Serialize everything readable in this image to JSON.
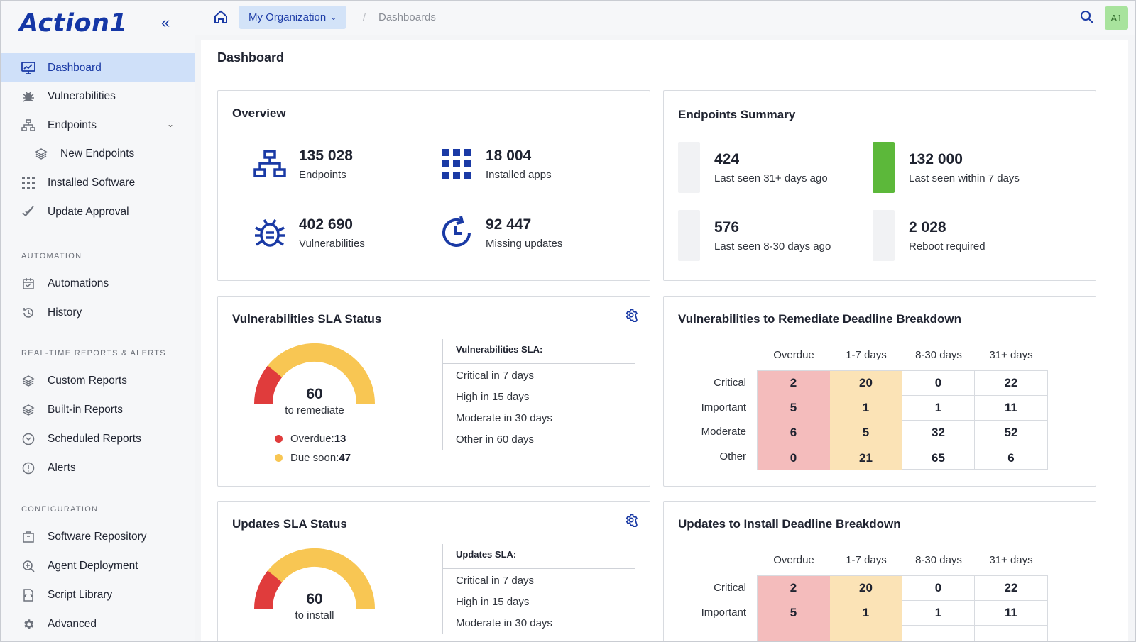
{
  "app": {
    "logo": "Action1"
  },
  "topbar": {
    "organization": "My Organization",
    "breadcrumb": "Dashboards",
    "avatar": "A1"
  },
  "sidebar": {
    "items": [
      {
        "label": "Dashboard",
        "icon": "monitor-icon",
        "active": true
      },
      {
        "label": "Vulnerabilities",
        "icon": "bug-icon"
      },
      {
        "label": "Endpoints",
        "icon": "network-icon"
      },
      {
        "label": "New Endpoints",
        "icon": "layers-icon"
      },
      {
        "label": "Installed Software",
        "icon": "grid-icon"
      },
      {
        "label": "Update Approval",
        "icon": "double-check-icon"
      },
      {
        "label": "Automations",
        "icon": "calendar-check-icon"
      },
      {
        "label": "History",
        "icon": "history-icon"
      },
      {
        "label": "Custom Reports",
        "icon": "layers-icon"
      },
      {
        "label": "Built-in Reports",
        "icon": "layers-icon"
      },
      {
        "label": "Scheduled Reports",
        "icon": "clock-circle-icon"
      },
      {
        "label": "Alerts",
        "icon": "alert-circle-icon"
      },
      {
        "label": "Software Repository",
        "icon": "package-icon"
      },
      {
        "label": "Agent Deployment",
        "icon": "zoom-plus-icon"
      },
      {
        "label": "Script Library",
        "icon": "script-icon"
      },
      {
        "label": "Advanced",
        "icon": "gear-icon"
      }
    ],
    "sections": {
      "automation": "AUTOMATION",
      "reports": "REAL-TIME REPORTS & ALERTS",
      "configuration": "CONFIGURATION"
    }
  },
  "page": {
    "title": "Dashboard"
  },
  "overview": {
    "title": "Overview",
    "items": [
      {
        "value": "135 028",
        "label": "Endpoints",
        "icon": "network-icon"
      },
      {
        "value": "18 004",
        "label": "Installed apps",
        "icon": "grid-icon"
      },
      {
        "value": "402 690",
        "label": "Vulnerabilities",
        "icon": "bug-icon"
      },
      {
        "value": "92 447",
        "label": "Missing updates",
        "icon": "refresh-clock-icon"
      }
    ]
  },
  "endpoints_summary": {
    "title": "Endpoints Summary",
    "items": [
      {
        "value": "424",
        "label": "Last seen 31+ days ago"
      },
      {
        "value": "132 000",
        "label": "Last seen within 7 days"
      },
      {
        "value": "576",
        "label": "Last seen 8-30 days ago"
      },
      {
        "value": "2 028",
        "label": "Reboot required"
      }
    ]
  },
  "vuln_sla": {
    "title": "Vulnerabilities SLA Status",
    "gauge_value": "60",
    "gauge_label": "to remediate",
    "overdue_fraction": 0.217,
    "legend": [
      {
        "label": "Overdue:",
        "value": "13",
        "color": "#e03c3c"
      },
      {
        "label": "Due soon:",
        "value": "47",
        "color": "#f8c653"
      }
    ],
    "sla_title": "Vulnerabilities SLA:",
    "sla_lines": [
      "Critical in 7 days",
      "High in 15 days",
      "Moderate in 30 days",
      "Other in 60 days"
    ]
  },
  "vuln_breakdown": {
    "title": "Vulnerabilities to Remediate Deadline Breakdown",
    "columns": [
      "Overdue",
      "1-7 days",
      "8-30 days",
      "31+ days"
    ],
    "rows": [
      {
        "label": "Critical",
        "values": [
          "2",
          "20",
          "0",
          "22"
        ]
      },
      {
        "label": "Important",
        "values": [
          "5",
          "1",
          "1",
          "11"
        ]
      },
      {
        "label": "Moderate",
        "values": [
          "6",
          "5",
          "32",
          "52"
        ]
      },
      {
        "label": "Other",
        "values": [
          "0",
          "21",
          "65",
          "6"
        ]
      }
    ]
  },
  "updates_sla": {
    "title": "Updates SLA Status",
    "gauge_value": "60",
    "gauge_label": "to install",
    "overdue_fraction": 0.217,
    "sla_title": "Updates SLA:",
    "sla_lines": [
      "Critical in 7 days",
      "High in 15 days",
      "Moderate in 30 days"
    ]
  },
  "updates_breakdown": {
    "title": "Updates to Install Deadline Breakdown",
    "columns": [
      "Overdue",
      "1-7 days",
      "8-30 days",
      "31+ days"
    ],
    "rows": [
      {
        "label": "Critical",
        "values": [
          "2",
          "20",
          "0",
          "22"
        ]
      },
      {
        "label": "Important",
        "values": [
          "5",
          "1",
          "1",
          "11"
        ]
      }
    ]
  },
  "colors": {
    "accent": "#1a3aa5",
    "overdue": "#e03c3c",
    "due_soon": "#f8c653",
    "green": "#5cb83a"
  }
}
